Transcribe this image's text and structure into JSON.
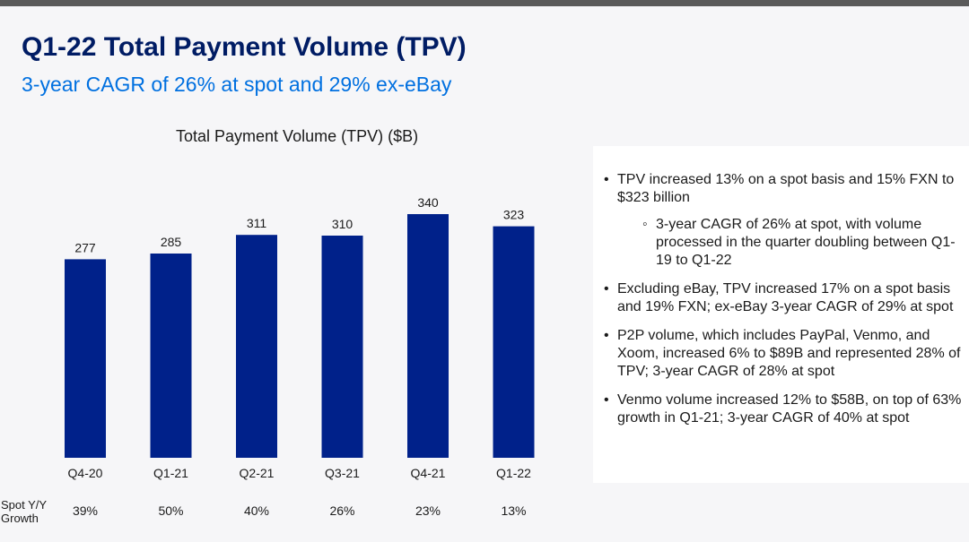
{
  "slide": {
    "title": "Q1-22 Total Payment Volume (TPV)",
    "subtitle": "3-year CAGR of 26% at spot and 29% ex-eBay"
  },
  "colors": {
    "bar": "#00218a",
    "title": "#001c64",
    "subtitle": "#0070e0"
  },
  "chart_data": {
    "type": "bar",
    "title": "Total Payment Volume (TPV) ($B)",
    "categories": [
      "Q4-20",
      "Q1-21",
      "Q2-21",
      "Q3-21",
      "Q4-21",
      "Q1-22"
    ],
    "values": [
      277,
      285,
      311,
      310,
      340,
      323
    ],
    "data_labels": [
      "277",
      "285",
      "311",
      "310",
      "340",
      "323"
    ],
    "ylim": [
      0,
      340
    ],
    "grid": false,
    "growth_row": {
      "label_line1": "Spot Y/Y",
      "label_line2": "Growth",
      "values": [
        "39%",
        "50%",
        "40%",
        "26%",
        "23%",
        "13%"
      ]
    }
  },
  "panel": {
    "bullets": [
      {
        "text": "TPV increased 13% on a spot basis and 15% FXN to $323 billion",
        "sub": [
          "3-year CAGR of 26% at spot, with volume processed in the quarter doubling between Q1-19 to Q1-22"
        ]
      },
      {
        "text": "Excluding eBay, TPV increased 17% on a spot basis and 19% FXN; ex-eBay 3-year CAGR of 29% at spot"
      },
      {
        "text": "P2P volume, which includes PayPal, Venmo, and Xoom, increased 6% to $89B and represented 28% of TPV; 3-year CAGR of 28% at spot"
      },
      {
        "text": "Venmo volume increased 12% to $58B, on top of 63% growth in Q1-21; 3-year CAGR of 40% at spot"
      }
    ]
  }
}
